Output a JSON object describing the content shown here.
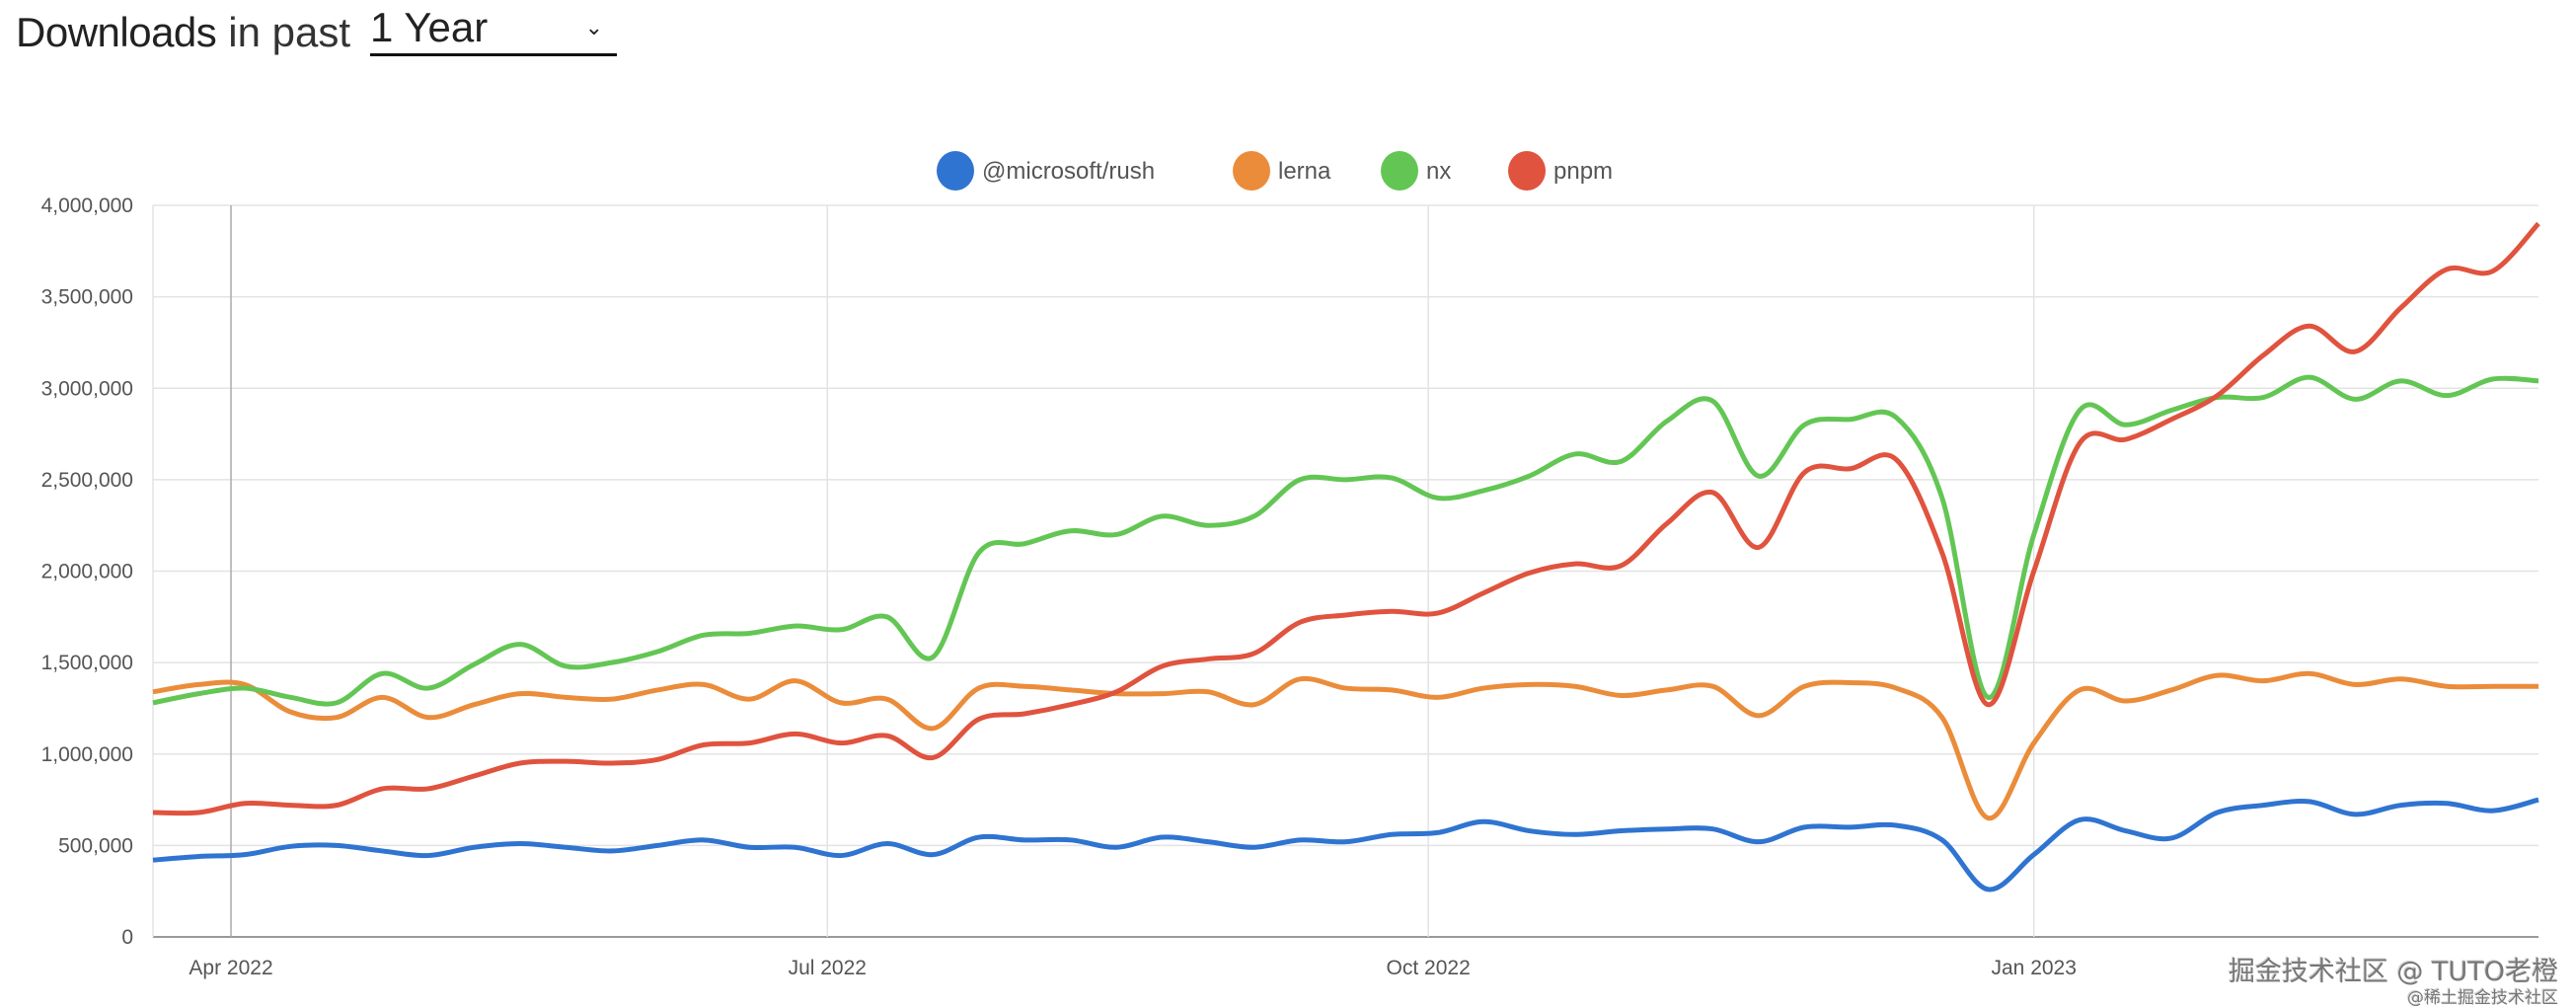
{
  "header": {
    "title_strong": "Downloads",
    "title_light": "in past",
    "period_select": "1 Year",
    "chevron_icon": "chevron-down-icon"
  },
  "watermark": {
    "line1": "掘金技术社区 @ TUTO老橙",
    "line2": "@稀土掘金技术社区"
  },
  "chart_data": {
    "type": "line",
    "title": "",
    "xlabel": "",
    "ylabel": "Downloads",
    "x_note": "weekly points, approx. late Mar 2022 to mid Mar 2023",
    "x_ticks": [
      {
        "label": "Apr 2022",
        "week": 1.7
      },
      {
        "label": "Jul 2022",
        "week": 14.7
      },
      {
        "label": "Oct 2022",
        "week": 27.8
      },
      {
        "label": "Jan 2023",
        "week": 41
      }
    ],
    "y_ticks": [
      "0",
      "500,000",
      "1,000,000",
      "1,500,000",
      "2,000,000",
      "2,500,000",
      "3,000,000",
      "3,500,000",
      "4,000,000"
    ],
    "ylim": [
      0,
      4000000
    ],
    "grid": true,
    "legend_position": "top-center",
    "series": [
      {
        "name": "@microsoft/rush",
        "color": "#2f74d0",
        "values_thousands": [
          420,
          440,
          450,
          495,
          500,
          470,
          445,
          490,
          510,
          490,
          470,
          500,
          530,
          490,
          490,
          445,
          510,
          450,
          545,
          530,
          530,
          490,
          545,
          520,
          490,
          530,
          520,
          560,
          570,
          630,
          580,
          560,
          580,
          590,
          590,
          520,
          600,
          600,
          610,
          530,
          260,
          450,
          640,
          580,
          540,
          680,
          720,
          740,
          670,
          720,
          730,
          690,
          750
        ]
      },
      {
        "name": "lerna",
        "color": "#eb8c3a",
        "values_thousands": [
          1340,
          1380,
          1380,
          1230,
          1200,
          1310,
          1200,
          1270,
          1330,
          1310,
          1300,
          1350,
          1380,
          1300,
          1400,
          1280,
          1300,
          1140,
          1360,
          1370,
          1350,
          1330,
          1330,
          1340,
          1270,
          1410,
          1360,
          1350,
          1310,
          1360,
          1380,
          1370,
          1320,
          1350,
          1370,
          1210,
          1370,
          1390,
          1360,
          1200,
          650,
          1060,
          1350,
          1290,
          1350,
          1430,
          1400,
          1440,
          1380,
          1410,
          1370,
          1370,
          1370
        ]
      },
      {
        "name": "nx",
        "color": "#63c654",
        "values_thousands": [
          1280,
          1330,
          1360,
          1310,
          1280,
          1440,
          1360,
          1490,
          1600,
          1480,
          1500,
          1560,
          1650,
          1660,
          1700,
          1680,
          1750,
          1530,
          2100,
          2150,
          2220,
          2200,
          2300,
          2250,
          2300,
          2500,
          2500,
          2510,
          2400,
          2440,
          2520,
          2640,
          2600,
          2820,
          2930,
          2520,
          2800,
          2830,
          2840,
          2400,
          1310,
          2200,
          2880,
          2800,
          2880,
          2950,
          2950,
          3060,
          2940,
          3040,
          2960,
          3050,
          3040
        ]
      },
      {
        "name": "pnpm",
        "color": "#e0533e",
        "values_thousands": [
          680,
          680,
          730,
          720,
          720,
          810,
          810,
          880,
          950,
          960,
          950,
          970,
          1050,
          1060,
          1110,
          1060,
          1100,
          980,
          1190,
          1220,
          1270,
          1340,
          1480,
          1520,
          1550,
          1720,
          1760,
          1780,
          1770,
          1880,
          1990,
          2040,
          2030,
          2260,
          2430,
          2130,
          2540,
          2560,
          2610,
          2100,
          1270,
          2000,
          2700,
          2720,
          2830,
          2960,
          3180,
          3340,
          3200,
          3440,
          3650,
          3640,
          3900
        ]
      }
    ]
  }
}
